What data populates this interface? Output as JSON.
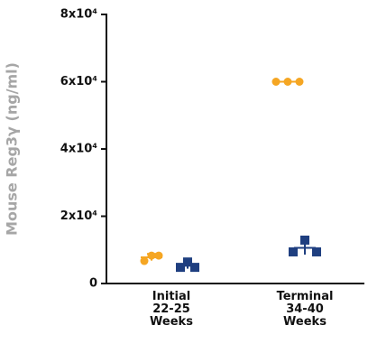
{
  "chart_data": {
    "type": "dot",
    "y_label": "Mouse Reg3γ (ng/ml)",
    "categories": [
      "Initial\n22-25\nWeeks",
      "Terminal\n34-40\nWeeks"
    ],
    "ylim": [
      0,
      80000
    ],
    "yticks": [
      0,
      {
        "value": 20000,
        "label": "2x10⁴"
      },
      {
        "value": 40000,
        "label": "4x10⁴"
      },
      {
        "value": 60000,
        "label": "6x10⁴"
      },
      {
        "value": 80000,
        "label": "8x10⁴"
      }
    ],
    "series": [
      {
        "color": "#f5a623",
        "marker": "circle",
        "values": [
          [
            6700,
            8300,
            8300
          ],
          [
            60000,
            60000,
            60000
          ]
        ],
        "means": [
          7800,
          60000
        ],
        "errors": [
          1000,
          0
        ]
      },
      {
        "color": "#1f3f80",
        "marker": "square",
        "values": [
          [
            4800,
            6400,
            4800
          ],
          [
            9400,
            12900,
            9400
          ]
        ],
        "means": [
          5300,
          10600
        ],
        "errors": [
          900,
          2000
        ]
      }
    ]
  }
}
